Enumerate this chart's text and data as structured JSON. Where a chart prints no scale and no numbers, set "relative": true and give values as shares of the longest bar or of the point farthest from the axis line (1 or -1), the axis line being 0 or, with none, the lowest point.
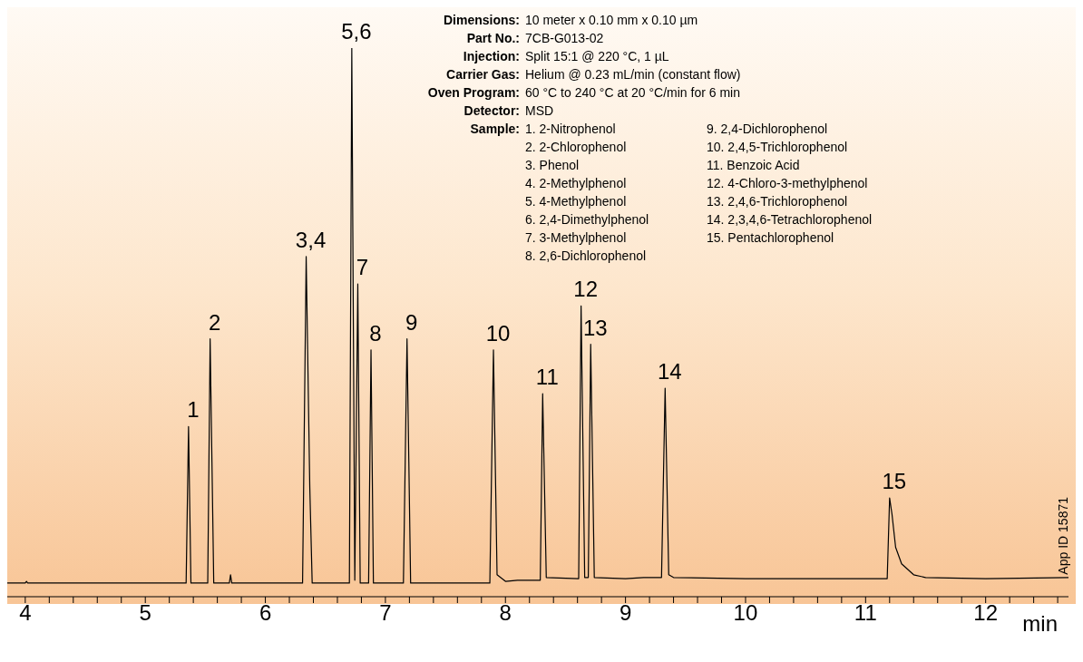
{
  "chart_data": {
    "type": "line",
    "relative": true,
    "xlabel": "min",
    "marker": "none",
    "xlim": [
      3.85,
      12.69
    ],
    "xticks": [
      4,
      {
        "value": 4.2,
        "label": null
      },
      {
        "value": 4.4,
        "label": null
      },
      {
        "value": 4.6,
        "label": null
      },
      {
        "value": 4.8,
        "label": null
      },
      5,
      {
        "value": 5.2,
        "label": null
      },
      {
        "value": 5.4,
        "label": null
      },
      {
        "value": 5.6,
        "label": null
      },
      {
        "value": 5.8,
        "label": null
      },
      6,
      {
        "value": 6.2,
        "label": null
      },
      {
        "value": 6.4,
        "label": null
      },
      {
        "value": 6.6,
        "label": null
      },
      {
        "value": 6.8,
        "label": null
      },
      7,
      {
        "value": 7.2,
        "label": null
      },
      {
        "value": 7.4,
        "label": null
      },
      {
        "value": 7.6,
        "label": null
      },
      {
        "value": 7.8,
        "label": null
      },
      8,
      {
        "value": 8.2,
        "label": null
      },
      {
        "value": 8.4,
        "label": null
      },
      {
        "value": 8.6,
        "label": null
      },
      {
        "value": 8.8,
        "label": null
      },
      9,
      {
        "value": 9.2,
        "label": null
      },
      {
        "value": 9.4,
        "label": null
      },
      {
        "value": 9.6,
        "label": null
      },
      {
        "value": 9.8,
        "label": null
      },
      10,
      {
        "value": 10.2,
        "label": null
      },
      {
        "value": 10.4,
        "label": null
      },
      {
        "value": 10.6,
        "label": null
      },
      {
        "value": 10.8,
        "label": null
      },
      11,
      {
        "value": 11.2,
        "label": null
      },
      {
        "value": 11.4,
        "label": null
      },
      {
        "value": 11.6,
        "label": null
      },
      {
        "value": 11.8,
        "label": null
      },
      12,
      {
        "value": 12.2,
        "label": null
      },
      {
        "value": 12.4,
        "label": null
      },
      {
        "value": 12.6,
        "label": null
      }
    ],
    "series": [
      {
        "color": "#000000",
        "x": [
          3.85,
          4.0,
          4.01,
          4.02,
          5.34,
          5.36,
          5.38,
          5.52,
          5.54,
          5.57,
          5.7,
          5.71,
          5.72,
          6.31,
          6.34,
          6.37,
          6.39,
          6.7,
          6.72,
          6.745,
          6.77,
          6.79,
          6.86,
          6.88,
          6.9,
          7.15,
          7.18,
          7.21,
          7.87,
          7.9,
          7.93,
          8.0,
          8.1,
          8.29,
          8.31,
          8.34,
          8.61,
          8.63,
          8.66,
          8.69,
          8.71,
          8.74,
          9.0,
          9.15,
          9.3,
          9.33,
          9.36,
          9.4,
          10.0,
          11.0,
          11.18,
          11.2,
          11.22,
          11.25,
          11.3,
          11.4,
          11.5,
          12.0,
          12.69
        ],
        "values": [
          0.025,
          0.025,
          0.028,
          0.025,
          0.025,
          0.31,
          0.025,
          0.025,
          0.47,
          0.025,
          0.025,
          0.04,
          0.025,
          0.025,
          0.62,
          0.2,
          0.025,
          0.025,
          1.0,
          0.03,
          0.57,
          0.025,
          0.025,
          0.45,
          0.025,
          0.025,
          0.47,
          0.025,
          0.025,
          0.45,
          0.04,
          0.028,
          0.03,
          0.03,
          0.37,
          0.035,
          0.033,
          0.53,
          0.035,
          0.035,
          0.46,
          0.035,
          0.033,
          0.035,
          0.035,
          0.38,
          0.04,
          0.035,
          0.033,
          0.033,
          0.033,
          0.18,
          0.15,
          0.09,
          0.06,
          0.04,
          0.035,
          0.033,
          0.035
        ]
      }
    ],
    "annotations": [
      {
        "text": "1",
        "x": 5.36,
        "y": 0.31
      },
      {
        "text": "2",
        "x": 5.54,
        "y": 0.47
      },
      {
        "text": "3,4",
        "x": 6.34,
        "y": 0.62
      },
      {
        "text": "5,6",
        "x": 6.72,
        "y": 1.0
      },
      {
        "text": "7",
        "x": 6.77,
        "y": 0.57
      },
      {
        "text": "8",
        "x": 6.88,
        "y": 0.45
      },
      {
        "text": "9",
        "x": 7.18,
        "y": 0.47
      },
      {
        "text": "10",
        "x": 7.9,
        "y": 0.45
      },
      {
        "text": "11",
        "x": 8.31,
        "y": 0.37
      },
      {
        "text": "12",
        "x": 8.63,
        "y": 0.53
      },
      {
        "text": "13",
        "x": 8.71,
        "y": 0.46
      },
      {
        "text": "14",
        "x": 9.33,
        "y": 0.38
      },
      {
        "text": "15",
        "x": 11.2,
        "y": 0.18
      },
      "Dimensions: 10 meter x 0.10 mm x 0.10 µm",
      "Part No.: 7CB-G013-02",
      "Injection: Split 15:1 @ 220 °C, 1 µL",
      "Carrier Gas: Helium @ 0.23 mL/min (constant flow)",
      "Oven Program: 60 °C to 240 °C at 20 °C/min for 6 min",
      "Detector: MSD",
      "Sample: 1. 2-Nitrophenol",
      "2. 2-Chlorophenol",
      "3. Phenol",
      "4. 2-Methylphenol",
      "5. 4-Methylphenol",
      "6. 2,4-Dimethylphenol",
      "7. 3-Methylphenol",
      "8. 2,6-Dichlorophenol",
      "9. 2,4-Dichlorophenol",
      "10. 2,4,5-Trichlorophenol",
      "11. Benzoic Acid",
      "12. 4-Chloro-3-methylphenol",
      "13. 2,4,6-Trichlorophenol",
      "14. 2,3,4,6-Tetrachlorophenol",
      "15. Pentachlorophenol",
      "App ID 15871"
    ]
  }
}
